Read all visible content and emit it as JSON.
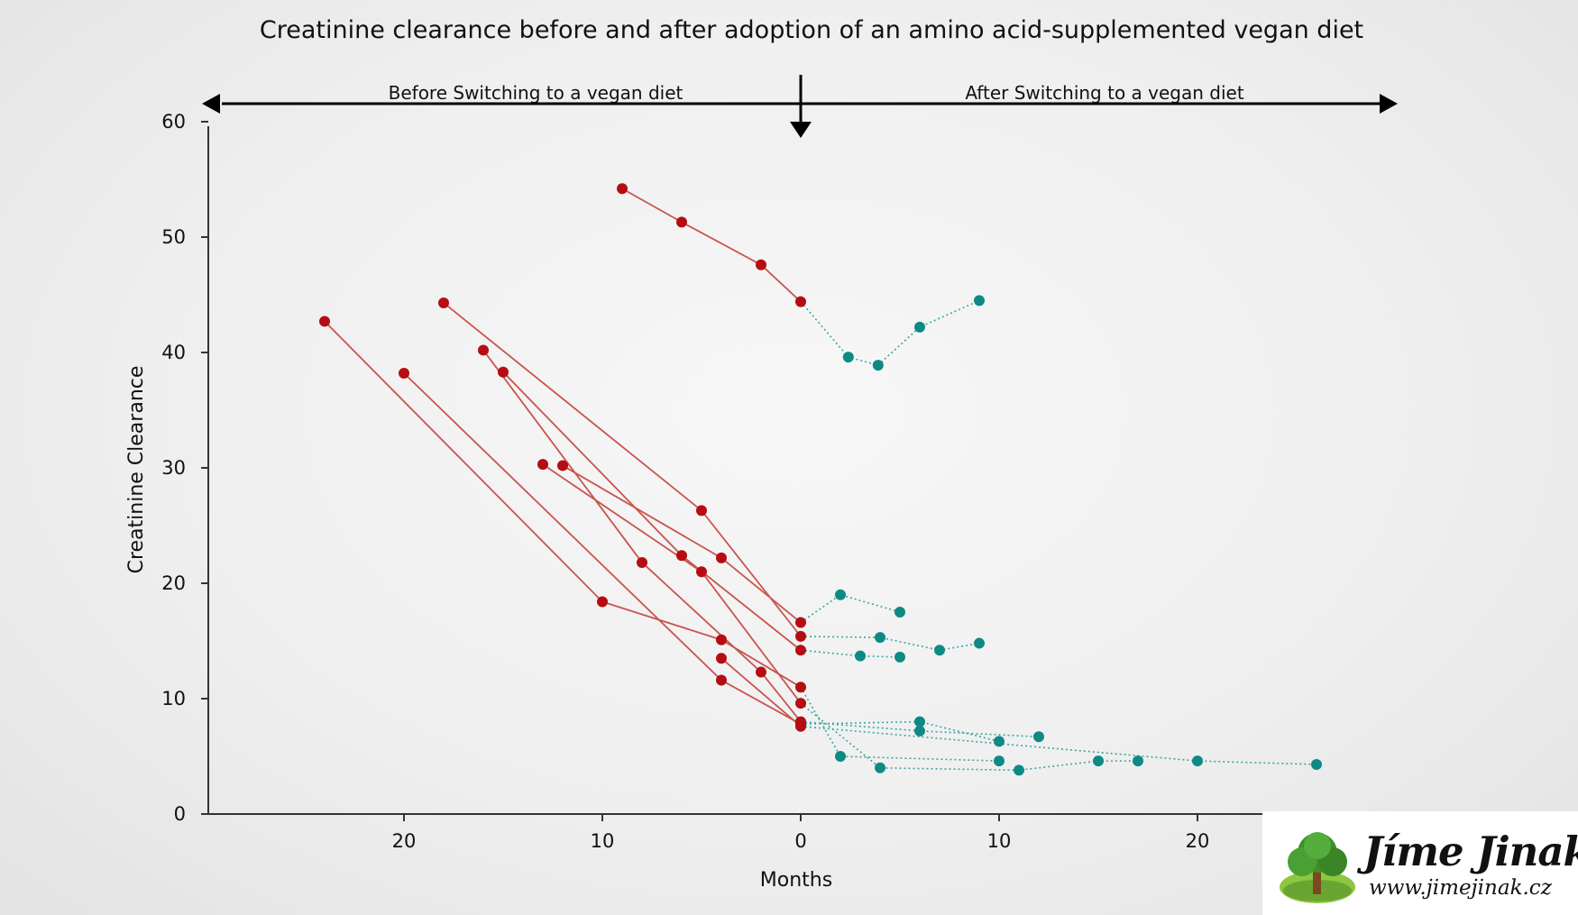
{
  "chart_data": {
    "type": "line",
    "title": "Creatinine clearance before and after adoption of an amino acid-supplemented vegan diet",
    "xlabel": "Months",
    "ylabel": "Creatinine Clearance",
    "xlim": [
      -30,
      30
    ],
    "ylim": [
      0,
      60
    ],
    "x_ticks": [
      {
        "value": -20,
        "label": "20"
      },
      {
        "value": -10,
        "label": "10"
      },
      {
        "value": 0,
        "label": "0"
      },
      {
        "value": 10,
        "label": "10"
      },
      {
        "value": 20,
        "label": "20"
      }
    ],
    "y_ticks": [
      {
        "value": 0,
        "label": "0"
      },
      {
        "value": 10,
        "label": "10"
      },
      {
        "value": 20,
        "label": "20"
      },
      {
        "value": 30,
        "label": "30"
      },
      {
        "value": 40,
        "label": "40"
      },
      {
        "value": 50,
        "label": "50"
      },
      {
        "value": 60,
        "label": "60"
      }
    ],
    "phase_labels": {
      "before": "Before Switching to a vegan diet",
      "after": "After Switching to a vegan diet"
    },
    "colors": {
      "before": "#b50d12",
      "before_line": "#c9544f",
      "after": "#0e8a85",
      "after_line": "#3aa6a0",
      "axis": "#333333"
    },
    "grid": false,
    "patients": [
      {
        "before": [
          [
            -9,
            54.2
          ],
          [
            -6,
            51.3
          ],
          [
            -2,
            47.6
          ],
          [
            0,
            44.4
          ]
        ],
        "after": [
          [
            0,
            44.4
          ],
          [
            2.4,
            39.6
          ],
          [
            3.9,
            38.9
          ],
          [
            6,
            42.2
          ],
          [
            9,
            44.5
          ]
        ]
      },
      {
        "before": [
          [
            -24,
            42.7
          ],
          [
            -10,
            18.4
          ],
          [
            -4,
            15.1
          ],
          [
            0,
            11
          ]
        ],
        "after": [
          [
            0,
            11
          ],
          [
            2,
            5
          ],
          [
            10,
            4.6
          ]
        ]
      },
      {
        "before": [
          [
            -20,
            38.2
          ],
          [
            -4,
            11.6
          ],
          [
            0,
            7.8
          ]
        ],
        "after": [
          [
            0,
            7.8
          ],
          [
            6,
            8
          ],
          [
            10,
            6.3
          ]
        ]
      },
      {
        "before": [
          [
            -18,
            44.3
          ],
          [
            -5,
            26.3
          ],
          [
            0,
            15.4
          ]
        ],
        "after": [
          [
            0,
            15.4
          ],
          [
            4,
            15.3
          ],
          [
            7,
            14.2
          ],
          [
            9,
            14.8
          ]
        ]
      },
      {
        "before": [
          [
            -16,
            40.2
          ],
          [
            -8,
            21.8
          ],
          [
            -2,
            12.3
          ],
          [
            0,
            8
          ]
        ],
        "after": [
          [
            0,
            8
          ],
          [
            6,
            7.2
          ],
          [
            12,
            6.7
          ]
        ]
      },
      {
        "before": [
          [
            -15,
            38.3
          ],
          [
            -6,
            22.4
          ],
          [
            0,
            14.2
          ]
        ],
        "after": [
          [
            0,
            14.2
          ],
          [
            3,
            13.7
          ],
          [
            5,
            13.6
          ]
        ]
      },
      {
        "before": [
          [
            -13,
            30.3
          ],
          [
            -5,
            21
          ],
          [
            0,
            9.6
          ]
        ],
        "after": [
          [
            0,
            9.6
          ],
          [
            4,
            4
          ],
          [
            11,
            3.8
          ],
          [
            15,
            4.6
          ],
          [
            17,
            4.6
          ]
        ]
      },
      {
        "before": [
          [
            -12,
            30.2
          ],
          [
            -4,
            22.2
          ],
          [
            0,
            16.6
          ]
        ],
        "after": [
          [
            0,
            16.6
          ],
          [
            2,
            19
          ],
          [
            5,
            17.5
          ]
        ]
      },
      {
        "before": [
          [
            -4,
            13.5
          ],
          [
            0,
            7.6
          ]
        ],
        "after": [
          [
            0,
            7.6
          ],
          [
            20,
            4.6
          ],
          [
            26,
            4.3
          ]
        ]
      }
    ]
  },
  "logo": {
    "name": "Jíme Jinak",
    "url": "www.jimejinak.cz"
  }
}
